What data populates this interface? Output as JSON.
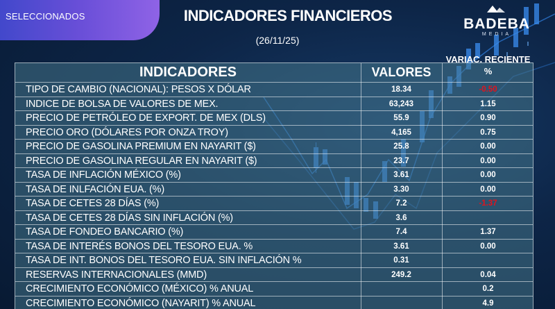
{
  "badge": {
    "label": "SELECCIONADOS"
  },
  "title": "INDICADORES FINANCIEROS",
  "date": "(26/11/25)",
  "logo": {
    "name": "BADEBA",
    "sub": "MEDIA"
  },
  "table": {
    "headers": {
      "indicator": "INDICADORES",
      "value": "VALORES",
      "variation": "VARIAC. RECIENTE %"
    },
    "rows": [
      {
        "name": "TIPO DE CAMBIO (NACIONAL): PESOS X DÓLAR",
        "value": "18.34",
        "variation": "-0.50",
        "negative": true
      },
      {
        "name": "INDICE DE BOLSA DE VALORES DE MEX.",
        "value": "63,243",
        "variation": "1.15",
        "negative": false
      },
      {
        "name": "PRECIO DE PETRÓLEO DE EXPORT. DE MEX (DLS)",
        "value": "55.9",
        "variation": "0.90",
        "negative": false
      },
      {
        "name": "PRECIO ORO (DÓLARES POR ONZA TROY)",
        "value": "4,165",
        "variation": "0.75",
        "negative": false
      },
      {
        "name": "PRECIO DE GASOLINA PREMIUM EN NAYARIT ($)",
        "value": "25.8",
        "variation": "0.00",
        "negative": false
      },
      {
        "name": "PRECIO DE GASOLINA REGULAR EN NAYARIT ($)",
        "value": "23.7",
        "variation": "0.00",
        "negative": false
      },
      {
        "name": "TASA DE INFLACIÓN MÉXICO (%)",
        "value": "3.61",
        "variation": "0.00",
        "negative": false
      },
      {
        "name": "TASA DE INLFACIÓN EUA. (%)",
        "value": "3.30",
        "variation": "0.00",
        "negative": false
      },
      {
        "name": "TASA DE CETES 28 DÍAS (%)",
        "value": "7.2",
        "variation": "-1.37",
        "negative": true
      },
      {
        "name": "TASA DE CETES 28 DÍAS SIN INFLACIÓN (%)",
        "value": "3.6",
        "variation": "",
        "negative": false
      },
      {
        "name": "TASA DE FONDEO BANCARIO (%)",
        "value": "7.4",
        "variation": "1.37",
        "negative": false
      },
      {
        "name": "TASA DE INTERÉS BONOS DEL TESORO EUA. %",
        "value": "3.61",
        "variation": "0.00",
        "negative": false
      },
      {
        "name": "TASA DE INT. BONOS DEL TESORO  EUA. SIN INFLACIÓN %",
        "value": "0.31",
        "variation": "",
        "negative": false
      },
      {
        "name": "RESERVAS INTERNACIONALES (MMD)",
        "value": "249.2",
        "variation": "0.04",
        "negative": false
      },
      {
        "name": "CRECIMIENTO ECONÓMICO (MÉXICO) % ANUAL",
        "value": "",
        "variation": "0.2",
        "negative": false
      },
      {
        "name": "CRECIMIENTO ECONÓMICO (NAYARIT) % ANUAL",
        "value": "",
        "variation": "4.9",
        "negative": false
      }
    ]
  },
  "colors": {
    "background": "#0d2547",
    "badge_start": "#3b47c9",
    "badge_end": "#8f63e6",
    "table_fill": "#46788c",
    "negative": "#e3121c"
  }
}
